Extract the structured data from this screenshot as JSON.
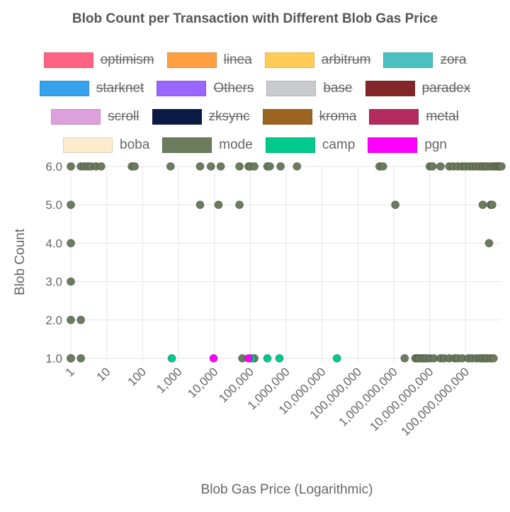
{
  "chart_data": {
    "type": "scatter",
    "title": "Blob Count per Transaction with Different Blob Gas Price",
    "xlabel": "Blob Gas Price (Logarithmic)",
    "ylabel": "Blob Count",
    "x_scale": "log",
    "xlim": [
      1,
      1000000000000
    ],
    "ylim": [
      1,
      6
    ],
    "x_ticks": [
      {
        "value": 1,
        "label": "1"
      },
      {
        "value": 10,
        "label": "10"
      },
      {
        "value": 100,
        "label": "100"
      },
      {
        "value": 1000,
        "label": "1,000"
      },
      {
        "value": 10000,
        "label": "10,000"
      },
      {
        "value": 100000,
        "label": "100,000"
      },
      {
        "value": 1000000,
        "label": "1,000,000"
      },
      {
        "value": 10000000,
        "label": "10,000,000"
      },
      {
        "value": 100000000,
        "label": "100,000,000"
      },
      {
        "value": 1000000000,
        "label": "1,000,000,000"
      },
      {
        "value": 10000000000,
        "label": "10,000,000,000"
      },
      {
        "value": 100000000000,
        "label": "100,000,000,000"
      }
    ],
    "y_ticks": [
      {
        "value": 1,
        "label": "1.0"
      },
      {
        "value": 2,
        "label": "2.0"
      },
      {
        "value": 3,
        "label": "3.0"
      },
      {
        "value": 4,
        "label": "4.0"
      },
      {
        "value": 5,
        "label": "5.0"
      },
      {
        "value": 6,
        "label": "6.0"
      }
    ],
    "grid": true,
    "legend_position": "top",
    "series": [
      {
        "name": "optimism",
        "color": "#ff6384",
        "hidden": true,
        "points": []
      },
      {
        "name": "linea",
        "color": "#ff9f40",
        "hidden": true,
        "points": []
      },
      {
        "name": "arbitrum",
        "color": "#ffcd56",
        "hidden": true,
        "points": []
      },
      {
        "name": "zora",
        "color": "#4bc0c0",
        "hidden": true,
        "points": []
      },
      {
        "name": "starknet",
        "color": "#36a2eb",
        "hidden": true,
        "points": []
      },
      {
        "name": "Others",
        "color": "#9966ff",
        "hidden": true,
        "points": []
      },
      {
        "name": "base",
        "color": "#c9cbcf",
        "hidden": true,
        "points": []
      },
      {
        "name": "paradex",
        "color": "#832729",
        "hidden": true,
        "points": []
      },
      {
        "name": "scroll",
        "color": "#dda0dd",
        "hidden": true,
        "points": []
      },
      {
        "name": "zksync",
        "color": "#0b1a45",
        "hidden": true,
        "points": []
      },
      {
        "name": "kroma",
        "color": "#9b6420",
        "hidden": true,
        "points": []
      },
      {
        "name": "metal",
        "color": "#b22b5e",
        "hidden": true,
        "points": []
      },
      {
        "name": "boba",
        "color": "#fdebd0",
        "hidden": false,
        "points": [
          [
            1,
            1
          ]
        ]
      },
      {
        "name": "mode",
        "color": "#6b7c5e",
        "hidden": false,
        "points": [
          [
            1,
            6
          ],
          [
            1,
            5
          ],
          [
            1,
            4
          ],
          [
            1,
            3
          ],
          [
            1,
            2
          ],
          [
            1,
            1
          ],
          [
            1.9,
            6
          ],
          [
            2.4,
            6
          ],
          [
            3,
            6
          ],
          [
            3.6,
            6
          ],
          [
            5,
            6
          ],
          [
            7,
            6
          ],
          [
            50,
            6
          ],
          [
            60,
            6
          ],
          [
            600,
            6
          ],
          [
            4000,
            6
          ],
          [
            8000,
            6
          ],
          [
            15000,
            6
          ],
          [
            50000,
            6
          ],
          [
            90000,
            6
          ],
          [
            100000,
            6
          ],
          [
            130000,
            6
          ],
          [
            300000,
            6
          ],
          [
            350000,
            6
          ],
          [
            700000,
            6
          ],
          [
            2000000,
            6
          ],
          [
            400000000,
            6
          ],
          [
            500000000,
            6
          ],
          [
            10000000000,
            6
          ],
          [
            12000000000,
            6
          ],
          [
            20000000000,
            6
          ],
          [
            35000000000,
            6
          ],
          [
            45000000000,
            6
          ],
          [
            60000000000,
            6
          ],
          [
            80000000000,
            6
          ],
          [
            100000000000,
            6
          ],
          [
            130000000000,
            6
          ],
          [
            160000000000,
            6
          ],
          [
            200000000000,
            6
          ],
          [
            250000000000,
            6
          ],
          [
            300000000000,
            6
          ],
          [
            350000000000,
            6
          ],
          [
            400000000000,
            6
          ],
          [
            500000000000,
            6
          ],
          [
            600000000000,
            6
          ],
          [
            700000000000,
            6
          ],
          [
            800000000000,
            6
          ],
          [
            900000000000,
            6
          ],
          [
            1000000000000,
            6
          ],
          [
            4000,
            5
          ],
          [
            13000,
            5
          ],
          [
            50000,
            5
          ],
          [
            1100000000,
            5
          ],
          [
            300000000000,
            5
          ],
          [
            500000000000,
            5
          ],
          [
            550000000000,
            5
          ],
          [
            450000000000,
            4
          ],
          [
            1.9,
            2
          ],
          [
            1.9,
            1
          ],
          [
            60000,
            1
          ],
          [
            130000,
            1
          ],
          [
            2000000000,
            1
          ],
          [
            4000000000,
            1
          ],
          [
            4500000000,
            1
          ],
          [
            5000000000,
            1
          ],
          [
            6000000000,
            1
          ],
          [
            7000000000,
            1
          ],
          [
            8000000000,
            1
          ],
          [
            10000000000,
            1
          ],
          [
            13000000000,
            1
          ],
          [
            20000000000,
            1
          ],
          [
            25000000000,
            1
          ],
          [
            35000000000,
            1
          ],
          [
            50000000000,
            1
          ],
          [
            60000000000,
            1
          ],
          [
            80000000000,
            1
          ],
          [
            120000000000,
            1
          ],
          [
            150000000000,
            1
          ],
          [
            200000000000,
            1
          ],
          [
            250000000000,
            1
          ],
          [
            300000000000,
            1
          ],
          [
            350000000000,
            1
          ],
          [
            400000000000,
            1
          ],
          [
            500000000000,
            1
          ],
          [
            600000000000,
            1
          ]
        ]
      },
      {
        "name": "camp",
        "color": "#00c98d",
        "hidden": false,
        "points": [
          [
            650,
            1
          ],
          [
            110000,
            1
          ],
          [
            300000,
            1
          ],
          [
            650000,
            1
          ],
          [
            26000000,
            1
          ]
        ]
      },
      {
        "name": "pgn",
        "color": "#ff00ff",
        "hidden": false,
        "points": [
          [
            9500,
            1
          ],
          [
            90000,
            1
          ]
        ]
      }
    ]
  }
}
